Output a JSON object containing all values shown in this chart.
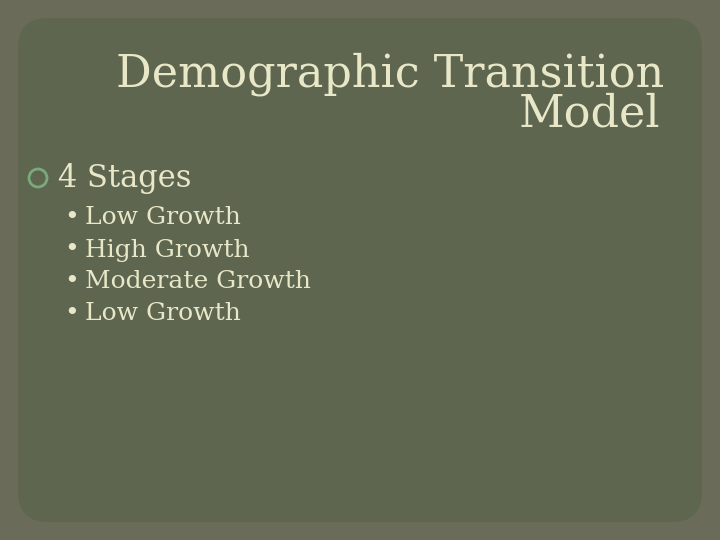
{
  "title_line1": "Demographic Transition",
  "title_line2": "Model",
  "main_bullet": "4 Stages",
  "sub_bullets": [
    "Low Growth",
    "High Growth",
    "Moderate Growth",
    "Low Growth"
  ],
  "bg_outer_color": "#6b6b5a",
  "bg_inner_color": "#5e6650",
  "text_color": "#e8e8c8",
  "bullet_circle_color": "#7aaa7a",
  "title_fontsize": 32,
  "main_bullet_fontsize": 22,
  "sub_bullet_fontsize": 18,
  "title_font": "DejaVu Serif",
  "body_font": "DejaVu Serif"
}
